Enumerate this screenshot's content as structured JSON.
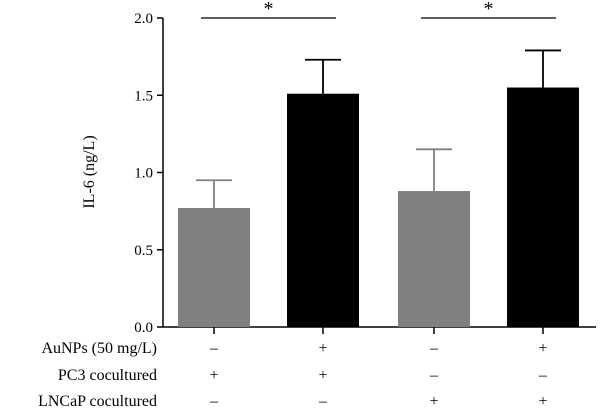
{
  "chart_data": {
    "type": "bar",
    "ylabel": "IL-6 (ng/L)",
    "ylim": [
      0,
      2.0
    ],
    "yticks": [
      "0.0",
      "0.5",
      "1.0",
      "1.5",
      "2.0"
    ],
    "grid": false,
    "bars": [
      {
        "value": 0.77,
        "error": 0.18,
        "color": "#808080"
      },
      {
        "value": 1.51,
        "error": 0.22,
        "color": "#000000"
      },
      {
        "value": 0.88,
        "error": 0.27,
        "color": "#808080"
      },
      {
        "value": 1.55,
        "error": 0.24,
        "color": "#000000"
      }
    ],
    "conditions": [
      {
        "label": "AuNPs (50 mg/L)",
        "signs": [
          "–",
          "+",
          "–",
          "+"
        ]
      },
      {
        "label": "PC3 cocultured",
        "signs": [
          "+",
          "+",
          "–",
          "–"
        ]
      },
      {
        "label": "LNCaP cocultured",
        "signs": [
          "–",
          "–",
          "+",
          "+"
        ]
      }
    ],
    "significance": [
      {
        "from": 0,
        "to": 1,
        "level": 2.0,
        "label": "*"
      },
      {
        "from": 2,
        "to": 3,
        "level": 2.0,
        "label": "*"
      }
    ]
  }
}
